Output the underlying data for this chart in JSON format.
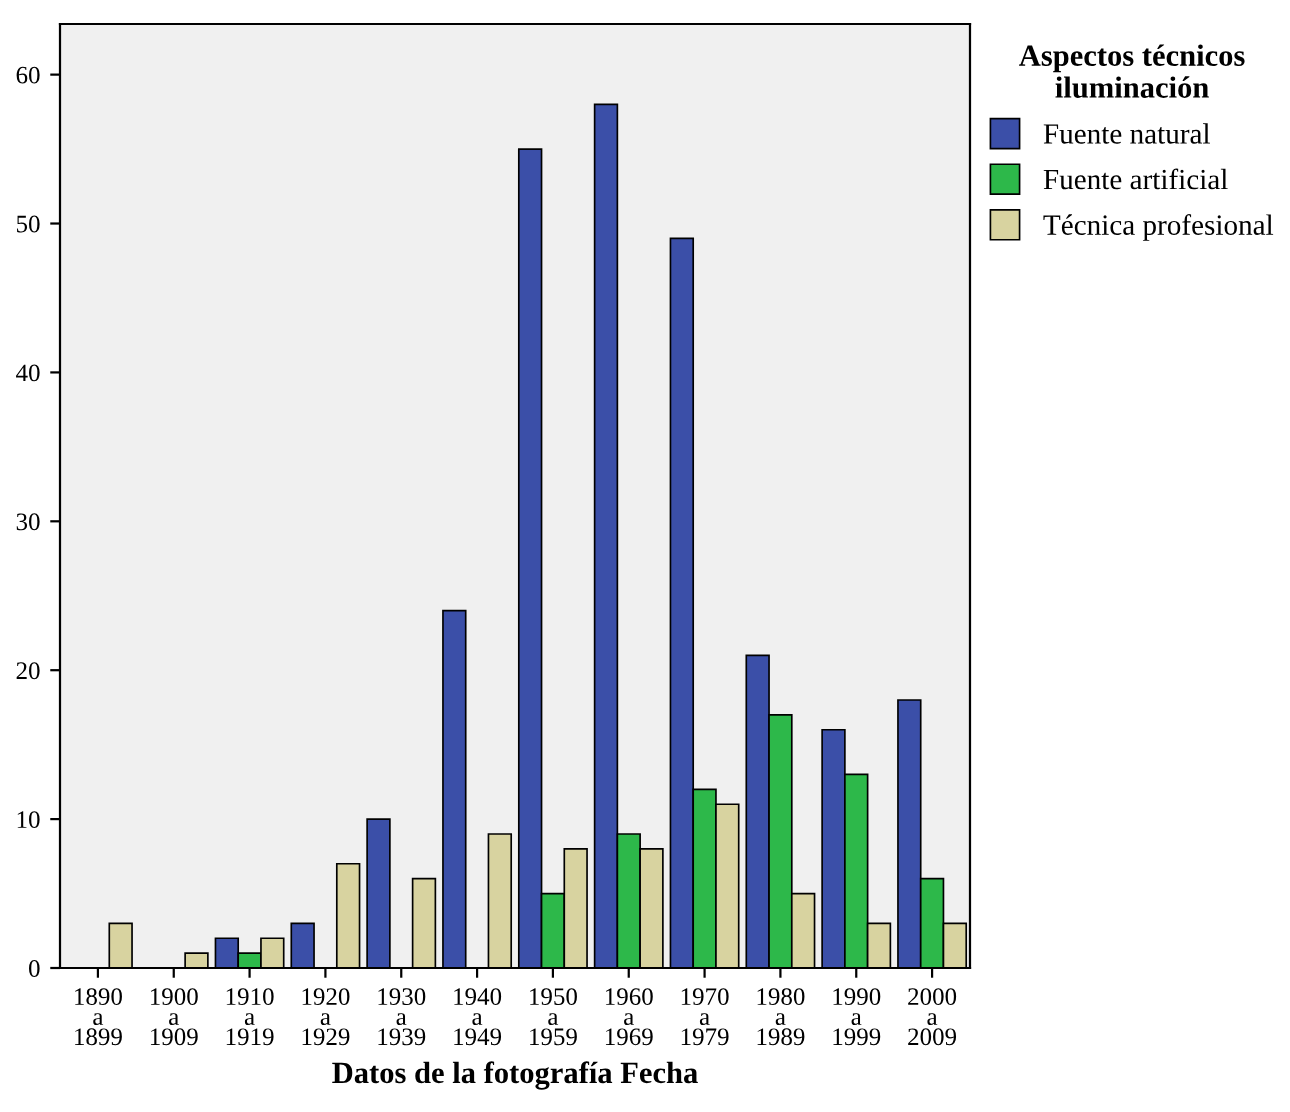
{
  "chart_data": {
    "type": "bar",
    "xlabel": "Datos de la fotografía Fecha",
    "legend_title": "Aspectos técnicos\niluminación",
    "categories": [
      "1890\na\n1899",
      "1900\na\n1909",
      "1910\na\n1919",
      "1920\na\n1929",
      "1930\na\n1939",
      "1940\na\n1949",
      "1950\na\n1959",
      "1960\na\n1969",
      "1970\na\n1979",
      "1980\na\n1989",
      "1990\na\n1999",
      "2000\na\n2009"
    ],
    "series": [
      {
        "name": "Fuente natural",
        "color": "#3b4fa8",
        "values": [
          null,
          null,
          2,
          3,
          10,
          24,
          55,
          58,
          49,
          21,
          16,
          18
        ]
      },
      {
        "name": "Fuente artificial",
        "color": "#2db84a",
        "values": [
          null,
          null,
          1,
          null,
          null,
          null,
          5,
          9,
          12,
          17,
          13,
          6
        ]
      },
      {
        "name": "Técnica profesional",
        "color": "#d8d3a0",
        "values": [
          3,
          1,
          2,
          7,
          6,
          9,
          8,
          8,
          11,
          5,
          3,
          3
        ]
      }
    ],
    "ylim": [
      0,
      63.4
    ],
    "yticks": [
      0,
      10,
      20,
      30,
      40,
      50,
      60
    ],
    "grid": false,
    "legend": "top right"
  }
}
